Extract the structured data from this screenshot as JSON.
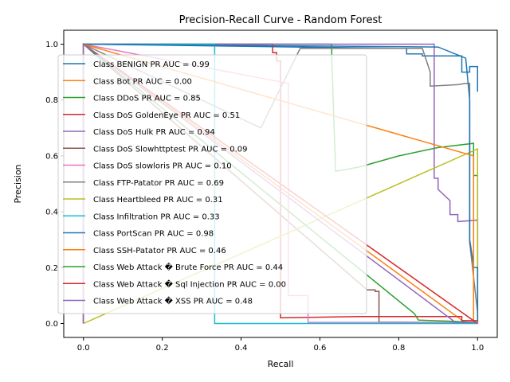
{
  "chart_data": {
    "type": "line",
    "title": "Precision-Recall Curve - Random Forest",
    "xlabel": "Recall",
    "ylabel": "Precision",
    "xlim": [
      -0.05,
      1.05
    ],
    "ylim": [
      -0.05,
      1.05
    ],
    "xticks": [
      0.0,
      0.2,
      0.4,
      0.6,
      0.8,
      1.0
    ],
    "xtick_labels": [
      "0.0",
      "0.2",
      "0.4",
      "0.6",
      "0.8",
      "1.0"
    ],
    "yticks": [
      0.0,
      0.2,
      0.4,
      0.6,
      0.8,
      1.0
    ],
    "ytick_labels": [
      "0.0",
      "0.2",
      "0.4",
      "0.6",
      "0.8",
      "1.0"
    ],
    "grid": false,
    "legend_position": "center-left",
    "series": [
      {
        "name": "Class BENIGN PR AUC = 0.99",
        "color": "#1f77b4",
        "x": [
          0.0,
          0.0,
          0.8,
          0.82,
          0.82,
          0.86,
          0.86,
          0.96,
          0.96,
          0.98,
          0.98,
          1.0,
          1.0
        ],
        "y": [
          1.0,
          1.0,
          0.985,
          0.985,
          0.965,
          0.965,
          0.958,
          0.958,
          0.9,
          0.9,
          0.92,
          0.92,
          0.83
        ]
      },
      {
        "name": "Class Bot PR AUC = 0.00",
        "color": "#ff7f0e",
        "x": [
          0.0,
          0.0,
          0.97,
          1.0,
          1.0
        ],
        "y": [
          0.0,
          1.0,
          0.002,
          0.001,
          0.0
        ]
      },
      {
        "name": "Class DDoS PR AUC = 0.85",
        "color": "#2ca02c",
        "x": [
          0.0,
          0.0,
          0.63,
          0.63,
          0.64,
          0.7,
          0.8,
          0.9,
          0.99,
          0.99,
          1.0,
          1.0
        ],
        "y": [
          0.0,
          1.0,
          1.0,
          0.95,
          0.545,
          0.56,
          0.6,
          0.63,
          0.645,
          0.53,
          0.53,
          0.0
        ]
      },
      {
        "name": "Class DoS GoldenEye PR AUC = 0.51",
        "color": "#d62728",
        "x": [
          0.0,
          0.0,
          0.48,
          0.48,
          0.49,
          0.49,
          0.5,
          0.5,
          0.7,
          0.96,
          0.96,
          1.0
        ],
        "y": [
          0.0,
          1.0,
          1.0,
          0.97,
          0.97,
          0.94,
          0.94,
          0.02,
          0.025,
          0.025,
          0.01,
          0.01
        ]
      },
      {
        "name": "Class DoS Hulk PR AUC = 0.94",
        "color": "#9467bd",
        "x": [
          0.0,
          0.0,
          0.89,
          0.89,
          0.9,
          0.9,
          0.9,
          0.93,
          0.93,
          0.95,
          0.95,
          1.0,
          1.0
        ],
        "y": [
          1.0,
          1.0,
          1.0,
          0.52,
          0.52,
          0.48,
          0.48,
          0.44,
          0.39,
          0.39,
          0.365,
          0.37,
          0.0
        ]
      },
      {
        "name": "Class DoS Slowhttptest PR AUC = 0.09",
        "color": "#8c564b",
        "x": [
          0.0,
          0.0,
          0.72,
          0.74,
          0.74,
          0.75,
          0.75,
          1.0
        ],
        "y": [
          0.0,
          1.0,
          0.12,
          0.12,
          0.115,
          0.115,
          0.005,
          0.003
        ]
      },
      {
        "name": "Class DoS slowloris PR AUC = 0.10",
        "color": "#e377c2",
        "x": [
          0.0,
          0.0,
          0.52,
          0.52,
          0.57,
          0.57,
          1.0
        ],
        "y": [
          0.0,
          1.0,
          0.86,
          0.1,
          0.1,
          0.004,
          0.004
        ]
      },
      {
        "name": "Class FTP-Patator PR AUC = 0.69",
        "color": "#7f7f7f",
        "x": [
          0.0,
          0.0,
          0.45,
          0.55,
          0.86,
          0.88,
          0.88,
          0.88,
          0.95,
          0.97,
          0.98,
          0.98,
          1.0,
          1.0
        ],
        "y": [
          0.0,
          1.0,
          0.7,
          0.985,
          0.985,
          0.9,
          0.87,
          0.85,
          0.855,
          0.86,
          0.86,
          0.29,
          0.04,
          0.0
        ]
      },
      {
        "name": "Class Heartbleed PR AUC = 0.31",
        "color": "#bcbd22",
        "x": [
          0.0,
          1.0,
          1.0
        ],
        "y": [
          0.0,
          0.625,
          0.0
        ]
      },
      {
        "name": "Class Infiltration PR AUC = 0.33",
        "color": "#17becf",
        "x": [
          0.0,
          0.0,
          0.333,
          0.333,
          1.0
        ],
        "y": [
          0.0,
          1.0,
          1.0,
          0.0,
          0.0
        ]
      },
      {
        "name": "Class PortScan PR AUC = 0.98",
        "color": "#1f77b4",
        "x": [
          0.0,
          0.0,
          0.9,
          0.97,
          0.98,
          0.98,
          0.99,
          0.99,
          1.0,
          1.0
        ],
        "y": [
          1.0,
          1.0,
          0.99,
          0.95,
          0.8,
          0.3,
          0.21,
          0.2,
          0.2,
          0.0
        ]
      },
      {
        "name": "Class SSH-Patator PR AUC = 0.46",
        "color": "#ff7f0e",
        "x": [
          0.0,
          0.0,
          0.99,
          0.99,
          1.0,
          1.0
        ],
        "y": [
          0.0,
          1.0,
          0.6,
          0.005,
          0.005,
          0.0
        ]
      },
      {
        "name": "Class Web Attack � Brute Force PR AUC = 0.44",
        "color": "#2ca02c",
        "x": [
          0.0,
          0.0,
          0.84,
          0.85,
          0.93,
          1.0
        ],
        "y": [
          0.0,
          1.0,
          0.035,
          0.012,
          0.008,
          0.003
        ]
      },
      {
        "name": "Class Web Attack � Sql Injection PR AUC = 0.00",
        "color": "#d62728",
        "x": [
          0.0,
          0.0,
          1.0
        ],
        "y": [
          0.0,
          1.0,
          0.0
        ]
      },
      {
        "name": "Class Web Attack � XSS PR AUC = 0.48",
        "color": "#9467bd",
        "x": [
          0.0,
          0.0,
          0.94,
          0.94,
          1.0
        ],
        "y": [
          0.0,
          1.0,
          0.008,
          0.004,
          0.004
        ]
      }
    ]
  }
}
